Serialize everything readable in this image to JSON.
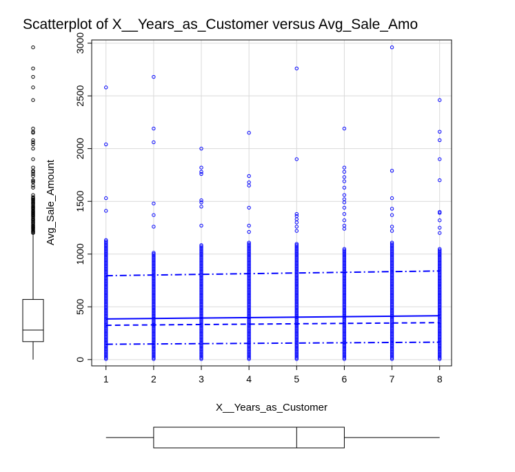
{
  "chart_data": {
    "type": "scatter",
    "title": "Scatterplot of X__Years_as_Customer versus Avg_Sale_Amo",
    "xlabel": "X__Years_as_Customer",
    "ylabel": "Avg_Sale_Amount",
    "xlim": [
      0.7,
      8.25
    ],
    "ylim": [
      -60,
      3030
    ],
    "x_ticks": [
      1,
      2,
      3,
      4,
      5,
      6,
      7,
      8
    ],
    "y_ticks": [
      0,
      500,
      1000,
      1500,
      2000,
      2500,
      3000
    ],
    "grid": true,
    "point_color": "#0000ff",
    "points": {
      "x_values": [
        1,
        2,
        3,
        4,
        5,
        6,
        7,
        8
      ],
      "dense_max": [
        1140,
        1020,
        1090,
        1110,
        1100,
        1060,
        1120,
        1050
      ],
      "outliers": [
        [
          2580,
          2040,
          1530,
          1410
        ],
        [
          2680,
          2190,
          2060,
          1480,
          1370,
          1260
        ],
        [
          2000,
          1820,
          1780,
          1760,
          1510,
          1490,
          1450,
          1270
        ],
        [
          2150,
          1740,
          1680,
          1650,
          1440,
          1270,
          1210
        ],
        [
          2760,
          1900,
          1380,
          1360,
          1330,
          1300,
          1260,
          1220
        ],
        [
          2190,
          1820,
          1780,
          1730,
          1690,
          1630,
          1560,
          1520,
          1490,
          1440,
          1380,
          1320,
          1270,
          1240
        ],
        [
          2960,
          1790,
          1530,
          1430,
          1370,
          1260,
          1220
        ],
        [
          2460,
          2160,
          2080,
          1900,
          1700,
          1400,
          1390,
          1320,
          1250,
          1200
        ]
      ]
    },
    "lines": [
      {
        "kind": "fit",
        "style": "solid",
        "x": [
          1,
          8
        ],
        "y": [
          385,
          415
        ]
      },
      {
        "kind": "upper-band",
        "style": "dashdot",
        "x": [
          1,
          8
        ],
        "y": [
          795,
          840
        ]
      },
      {
        "kind": "lower-band",
        "style": "dashdot",
        "x": [
          1,
          8
        ],
        "y": [
          145,
          165
        ]
      },
      {
        "kind": "inner-band",
        "style": "dashed",
        "x": [
          1,
          8
        ],
        "y": [
          325,
          350
        ]
      }
    ],
    "y_marginal_boxplot": {
      "orientation": "vertical",
      "whisker_low": 0,
      "q1": 170,
      "median": 280,
      "q3": 570,
      "whisker_high": 1180,
      "outliers": [
        2960,
        2760,
        2680,
        2580,
        2460,
        2190,
        2160,
        2150,
        2080,
        2060,
        2040,
        2000,
        1900,
        1820,
        1790,
        1780,
        1760,
        1740,
        1700,
        1690,
        1680,
        1650,
        1630,
        1560,
        1530,
        1520,
        1510,
        1490,
        1480,
        1450,
        1440,
        1430,
        1410,
        1400,
        1390,
        1380,
        1370,
        1360,
        1330,
        1320,
        1300,
        1270,
        1260,
        1250,
        1240,
        1220,
        1210,
        1200
      ]
    },
    "x_marginal_boxplot": {
      "orientation": "horizontal",
      "whisker_low": 1,
      "q1": 2,
      "median": 5,
      "q3": 6,
      "whisker_high": 8
    }
  }
}
